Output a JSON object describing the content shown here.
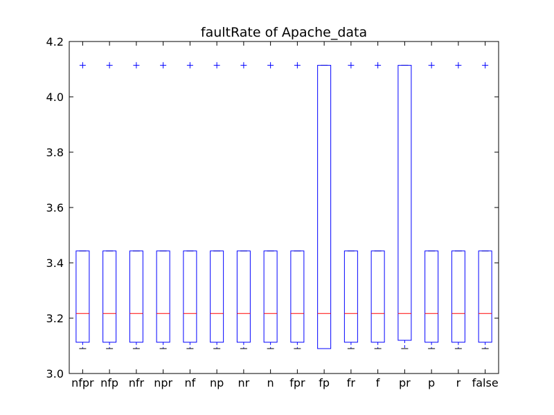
{
  "chart_data": {
    "type": "box",
    "title": "faultRate of Apache_data",
    "xlabel": "",
    "ylabel": "",
    "ylim": [
      3.0,
      4.2
    ],
    "yticks": [
      "3.0",
      "3.2",
      "3.4",
      "3.6",
      "3.8",
      "4.0",
      "4.2"
    ],
    "categories": [
      "nfpr",
      "nfp",
      "nfr",
      "npr",
      "nf",
      "np",
      "nr",
      "n",
      "fpr",
      "fp",
      "fr",
      "f",
      "pr",
      "p",
      "r",
      "false"
    ],
    "boxes": [
      {
        "category": "nfpr",
        "whisker_low": 3.09,
        "q1": 3.113,
        "median": 3.217,
        "q3": 3.443,
        "whisker_high": 3.443,
        "outliers": [
          4.114
        ]
      },
      {
        "category": "nfp",
        "whisker_low": 3.09,
        "q1": 3.113,
        "median": 3.217,
        "q3": 3.443,
        "whisker_high": 3.443,
        "outliers": [
          4.114
        ]
      },
      {
        "category": "nfr",
        "whisker_low": 3.09,
        "q1": 3.113,
        "median": 3.217,
        "q3": 3.443,
        "whisker_high": 3.443,
        "outliers": [
          4.114
        ]
      },
      {
        "category": "npr",
        "whisker_low": 3.09,
        "q1": 3.113,
        "median": 3.217,
        "q3": 3.443,
        "whisker_high": 3.443,
        "outliers": [
          4.114
        ]
      },
      {
        "category": "nf",
        "whisker_low": 3.09,
        "q1": 3.113,
        "median": 3.217,
        "q3": 3.443,
        "whisker_high": 3.443,
        "outliers": [
          4.114
        ]
      },
      {
        "category": "np",
        "whisker_low": 3.09,
        "q1": 3.113,
        "median": 3.217,
        "q3": 3.443,
        "whisker_high": 3.443,
        "outliers": [
          4.114
        ]
      },
      {
        "category": "nr",
        "whisker_low": 3.09,
        "q1": 3.113,
        "median": 3.217,
        "q3": 3.443,
        "whisker_high": 3.443,
        "outliers": [
          4.114
        ]
      },
      {
        "category": "n",
        "whisker_low": 3.09,
        "q1": 3.113,
        "median": 3.217,
        "q3": 3.443,
        "whisker_high": 3.443,
        "outliers": [
          4.114
        ]
      },
      {
        "category": "fpr",
        "whisker_low": 3.09,
        "q1": 3.113,
        "median": 3.217,
        "q3": 3.443,
        "whisker_high": 3.443,
        "outliers": [
          4.114
        ]
      },
      {
        "category": "fp",
        "whisker_low": 3.09,
        "q1": 3.09,
        "median": 3.217,
        "q3": 4.114,
        "whisker_high": 4.114,
        "outliers": []
      },
      {
        "category": "fr",
        "whisker_low": 3.09,
        "q1": 3.113,
        "median": 3.217,
        "q3": 3.443,
        "whisker_high": 3.443,
        "outliers": [
          4.114
        ]
      },
      {
        "category": "f",
        "whisker_low": 3.09,
        "q1": 3.113,
        "median": 3.217,
        "q3": 3.443,
        "whisker_high": 3.443,
        "outliers": [
          4.114
        ]
      },
      {
        "category": "pr",
        "whisker_low": 3.09,
        "q1": 3.12,
        "median": 3.217,
        "q3": 4.114,
        "whisker_high": 4.114,
        "outliers": []
      },
      {
        "category": "p",
        "whisker_low": 3.09,
        "q1": 3.113,
        "median": 3.217,
        "q3": 3.443,
        "whisker_high": 3.443,
        "outliers": [
          4.114
        ]
      },
      {
        "category": "r",
        "whisker_low": 3.09,
        "q1": 3.113,
        "median": 3.217,
        "q3": 3.443,
        "whisker_high": 3.443,
        "outliers": [
          4.114
        ]
      },
      {
        "category": "false",
        "whisker_low": 3.09,
        "q1": 3.113,
        "median": 3.217,
        "q3": 3.443,
        "whisker_high": 3.443,
        "outliers": [
          4.114
        ]
      }
    ],
    "grid": false,
    "legend": "none",
    "colors": {
      "box": "#0000ff",
      "median": "#ff0000",
      "whisker": "#000000",
      "outlier": "#0000ff",
      "axes": "#000000",
      "background": "#ffffff"
    }
  }
}
